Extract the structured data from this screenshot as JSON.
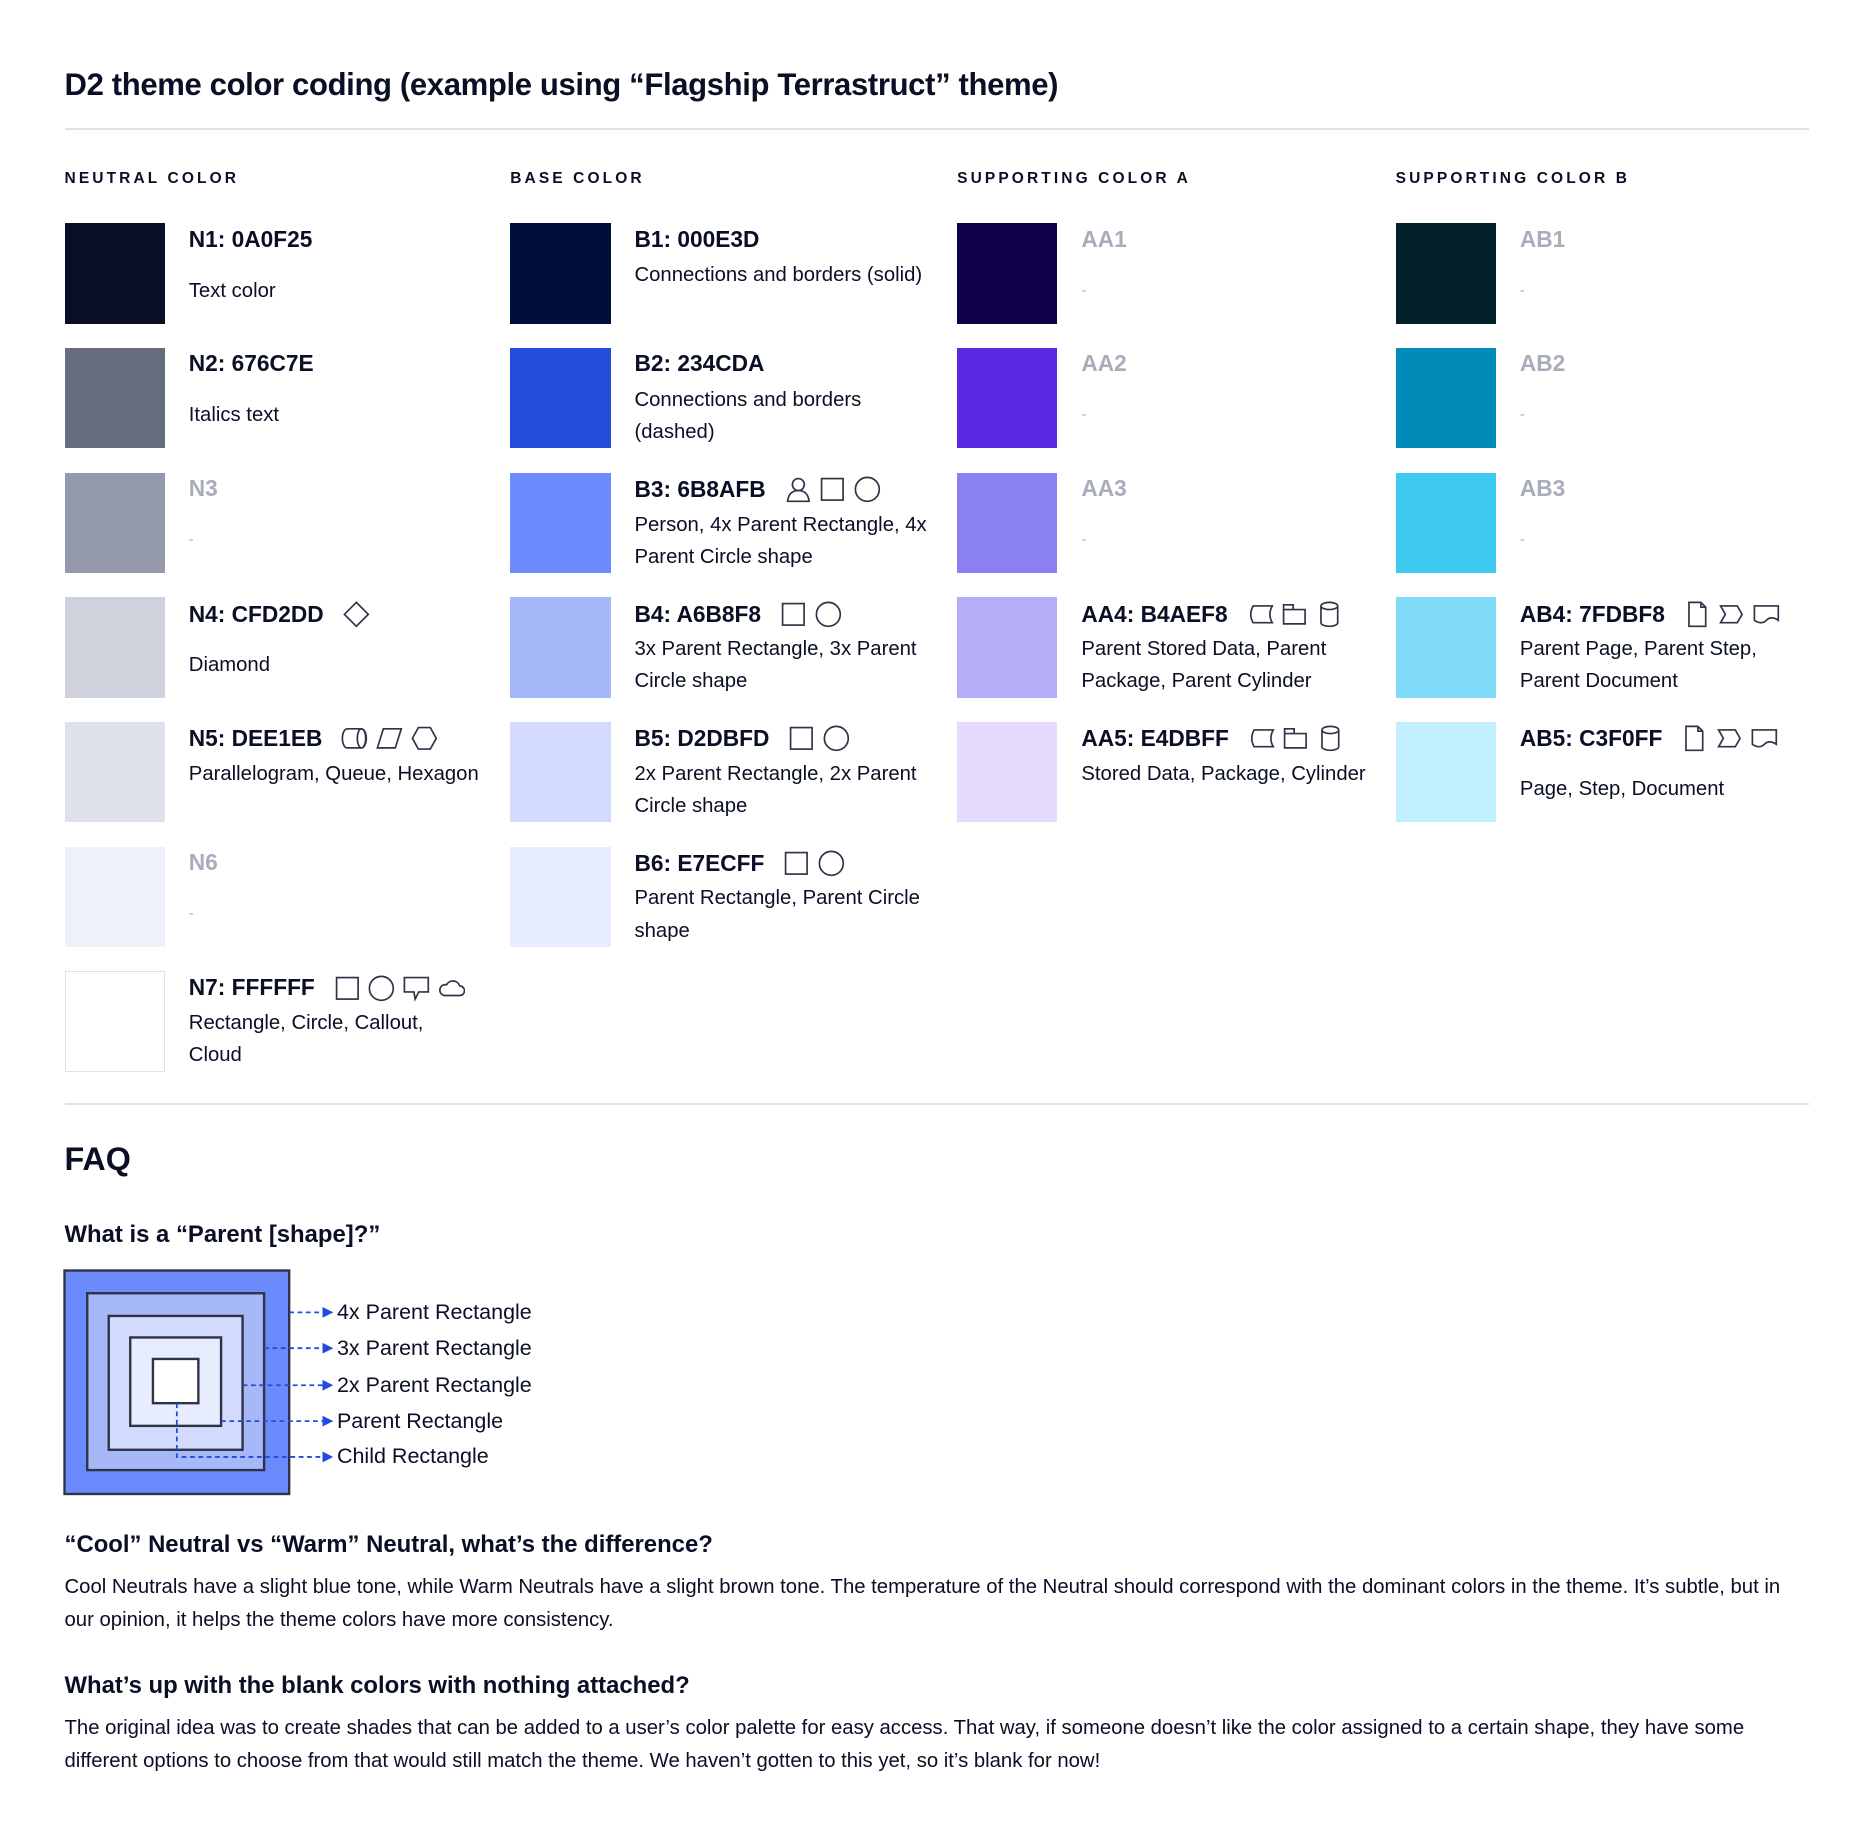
{
  "title": "D2 theme color coding (example using “Flagship Terrastruct” theme)",
  "colors": {
    "text": "#0A0F25",
    "muted": "#A9ADBB",
    "rule": "#DEE1EB",
    "arrow": "#234CDA",
    "border": "#2E3346"
  },
  "columns": [
    {
      "label": "NEUTRAL COLOR",
      "items": [
        {
          "code": "N1: 0A0F25",
          "hex": "#0A0F25",
          "desc": "Text color",
          "icons": []
        },
        {
          "code": "N2: 676C7E",
          "hex": "#676C7E",
          "desc": "Italics text",
          "icons": []
        },
        {
          "code": "N3",
          "hex": "#9499AB",
          "desc": "-",
          "muted": true,
          "icons": []
        },
        {
          "code": "N4: CFD2DD",
          "hex": "#CFD2DD",
          "desc": "Diamond",
          "icons": [
            "diamond-icon"
          ]
        },
        {
          "code": "N5: DEE1EB",
          "hex": "#DEE1EB",
          "desc": "Parallelogram, Queue, Hexagon",
          "icons": [
            "queue-icon",
            "parallelogram-icon",
            "hexagon-icon"
          ]
        },
        {
          "code": "N6",
          "hex": "#EEF1F8",
          "desc": "-",
          "muted": true,
          "icons": []
        },
        {
          "code": "N7: FFFFFF",
          "hex": "#FFFFFF",
          "desc": "Rectangle, Circle, Callout, Cloud",
          "icons": [
            "rectangle-icon",
            "circle-icon",
            "callout-icon",
            "cloud-icon"
          ]
        }
      ]
    },
    {
      "label": "BASE COLOR",
      "items": [
        {
          "code": "B1: 000E3D",
          "hex": "#000E3D",
          "desc": "Connections and borders (solid)",
          "icons": []
        },
        {
          "code": "B2: 234CDA",
          "hex": "#234CDA",
          "desc": "Connections and borders (dashed)",
          "icons": []
        },
        {
          "code": "B3: 6B8AFB",
          "hex": "#6B8AFB",
          "desc": "Person, 4x Parent Rectangle, 4x Parent Circle shape",
          "icons": [
            "person-icon",
            "rectangle-icon",
            "circle-icon"
          ]
        },
        {
          "code": "B4: A6B8F8",
          "hex": "#A6B8F8",
          "desc": "3x Parent Rectangle, 3x Parent Circle shape",
          "icons": [
            "rectangle-icon",
            "circle-icon"
          ]
        },
        {
          "code": "B5: D2DBFD",
          "hex": "#D2DBFD",
          "desc": "2x Parent Rectangle, 2x Parent Circle shape",
          "icons": [
            "rectangle-icon",
            "circle-icon"
          ]
        },
        {
          "code": "B6: E7ECFF",
          "hex": "#E7ECFF",
          "desc": "Parent Rectangle, Parent Circle shape",
          "icons": [
            "rectangle-icon",
            "circle-icon"
          ]
        }
      ]
    },
    {
      "label": "SUPPORTING COLOR A",
      "items": [
        {
          "code": "AA1",
          "hex": "#10004A",
          "desc": "-",
          "muted": true,
          "icons": []
        },
        {
          "code": "AA2",
          "hex": "#5A28E0",
          "desc": "-",
          "muted": true,
          "icons": []
        },
        {
          "code": "AA3",
          "hex": "#8A80F2",
          "desc": "-",
          "muted": true,
          "icons": []
        },
        {
          "code": "AA4: B4AEF8",
          "hex": "#B4AEF8",
          "desc": "Parent Stored Data, Parent Package,  Parent Cylinder",
          "icons": [
            "stored-data-icon",
            "package-icon",
            "cylinder-icon"
          ]
        },
        {
          "code": "AA5: E4DBFF",
          "hex": "#E4DBFF",
          "desc": "Stored Data, Package, Cylinder",
          "icons": [
            "stored-data-icon",
            "package-icon",
            "cylinder-icon"
          ]
        }
      ]
    },
    {
      "label": "SUPPORTING COLOR B",
      "items": [
        {
          "code": "AB1",
          "hex": "#022028",
          "desc": "-",
          "muted": true,
          "icons": []
        },
        {
          "code": "AB2",
          "hex": "#008BB8",
          "desc": "-",
          "muted": true,
          "icons": []
        },
        {
          "code": "AB3",
          "hex": "#3EC9F0",
          "desc": "-",
          "muted": true,
          "icons": []
        },
        {
          "code": "AB4: 7FDBF8",
          "hex": "#7FDBF8",
          "desc": "Parent Page, Parent Step, Parent Document",
          "icons": [
            "page-icon",
            "step-icon",
            "document-icon"
          ]
        },
        {
          "code": "AB5: C3F0FF",
          "hex": "#C3F0FF",
          "desc": "Page, Step, Document",
          "icons": [
            "page-icon",
            "step-icon",
            "document-icon"
          ]
        }
      ]
    }
  ],
  "faq": {
    "title": "FAQ",
    "q1": "What is a “Parent [shape]?”",
    "diagram_labels": [
      "4x Parent Rectangle",
      "3x Parent Rectangle",
      "2x Parent Rectangle",
      "Parent Rectangle",
      "Child Rectangle"
    ],
    "diagram_fills": [
      "#6B8AFB",
      "#A6B8F8",
      "#D2DBFD",
      "#E7ECFF",
      "#FFFFFF"
    ],
    "q2": "“Cool” Neutral vs “Warm” Neutral, what’s the difference?",
    "a2": "Cool Neutrals have a slight blue tone, while Warm Neutrals have a slight brown tone. The temperature of the Neutral should correspond with the dominant colors in the theme. It’s subtle, but in our opinion, it helps the theme colors have more consistency.",
    "q3": "What’s up with the blank colors with nothing attached?",
    "a3": "The original idea was to create shades that can be added to a user’s color palette for easy access. That way, if someone doesn’t like the color assigned to a certain shape, they have some different options to choose from that would still match the theme. We haven’t gotten to this yet, so it’s blank for now!"
  }
}
